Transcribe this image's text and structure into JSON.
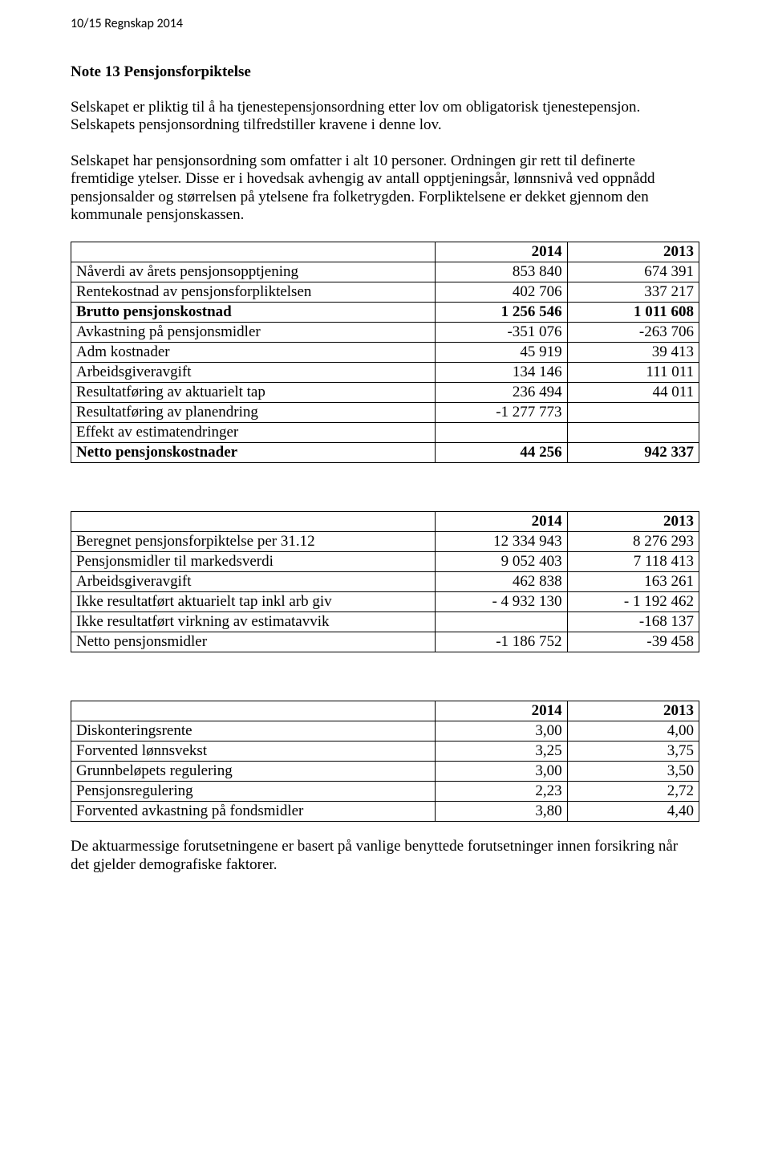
{
  "header": "10/15 Regnskap 2014",
  "title": "Note 13 Pensjonsforpiktelse",
  "paragraph1": "Selskapet er pliktig til å ha tjenestepensjonsordning etter lov om obligatorisk tjenestepensjon. Selskapets pensjonsordning tilfredstiller kravene i denne lov.",
  "paragraph2": "Selskapet har pensjonsordning som omfatter i alt 10 personer. Ordningen gir rett til definerte fremtidige ytelser. Disse er i hovedsak avhengig av antall opptjeningsår, lønnsnivå ved oppnådd pensjonsalder og størrelsen på ytelsene fra folketrygden. Forpliktelsene er dekket gjennom den kommunale pensjonskassen.",
  "table1": {
    "headers": [
      "",
      "2014",
      "2013"
    ],
    "rows": [
      [
        "Nåverdi av årets pensjonsopptjening",
        "853 840",
        "674 391"
      ],
      [
        "Rentekostnad av pensjonsforpliktelsen",
        "402 706",
        "337 217"
      ],
      [
        "Brutto pensjonskostnad",
        "1 256 546",
        "1 011 608"
      ],
      [
        "Avkastning på pensjonsmidler",
        "-351 076",
        "-263 706"
      ],
      [
        "Adm kostnader",
        "45 919",
        "39 413"
      ],
      [
        "Arbeidsgiveravgift",
        "134 146",
        "111 011"
      ],
      [
        "Resultatføring av aktuarielt tap",
        "236 494",
        "44 011"
      ],
      [
        "Resultatføring av planendring",
        "-1 277 773",
        ""
      ],
      [
        "Effekt av estimatendringer",
        "",
        ""
      ],
      [
        "Netto pensjonskostnader",
        "44 256",
        "942 337"
      ]
    ],
    "bold_rows": [
      2,
      9
    ]
  },
  "table2": {
    "headers": [
      "",
      "2014",
      "2013"
    ],
    "rows": [
      [
        "Beregnet pensjonsforpiktelse per 31.12",
        "12 334 943",
        "8 276 293"
      ],
      [
        "Pensjonsmidler til markedsverdi",
        "9 052 403",
        "7 118 413"
      ],
      [
        "Arbeidsgiveravgift",
        "462 838",
        "163 261"
      ],
      [
        "Ikke resultatført aktuarielt tap inkl arb giv",
        "- 4 932 130",
        "- 1 192 462"
      ],
      [
        "Ikke resultatført virkning av estimatavvik",
        "",
        "-168 137"
      ],
      [
        "Netto pensjonsmidler",
        "-1 186 752",
        "-39 458"
      ]
    ]
  },
  "table3": {
    "headers": [
      "",
      "2014",
      "2013"
    ],
    "rows": [
      [
        "Diskonteringsrente",
        "3,00",
        "4,00"
      ],
      [
        "Forvented lønnsvekst",
        "3,25",
        "3,75"
      ],
      [
        "Grunnbeløpets regulering",
        "3,00",
        "3,50"
      ],
      [
        "Pensjonsregulering",
        "2,23",
        "2,72"
      ],
      [
        "Forvented avkastning på fondsmidler",
        "3,80",
        "4,40"
      ]
    ]
  },
  "footnote": "De aktuarmessige forutsetningene er basert på vanlige benyttede forutsetninger innen forsikring når det gjelder demografiske faktorer."
}
